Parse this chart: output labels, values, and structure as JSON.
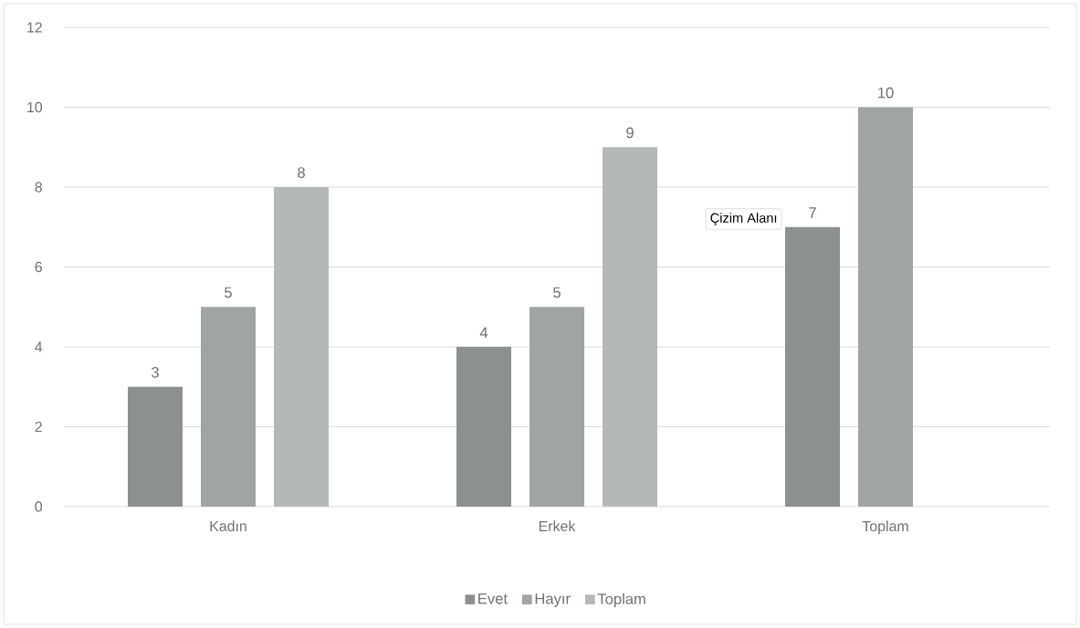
{
  "chart_data": {
    "type": "bar",
    "categories": [
      "Kadın",
      "Erkek",
      "Toplam"
    ],
    "series": [
      {
        "name": "Evet",
        "color": "#8a9190",
        "values": [
          3,
          4,
          7
        ]
      },
      {
        "name": "Hayır",
        "color": "#9ea5a4",
        "values": [
          5,
          5,
          10
        ]
      },
      {
        "name": "Toplam",
        "color": "#b3b9b8",
        "values": [
          8,
          9,
          null
        ]
      }
    ],
    "ylim": [
      0,
      12
    ],
    "yticks": [
      0,
      2,
      4,
      6,
      8,
      10,
      12
    ],
    "grid": "y",
    "legend": "bottom",
    "data_labels": true,
    "annotations": [
      "Çizim Alanı"
    ]
  }
}
